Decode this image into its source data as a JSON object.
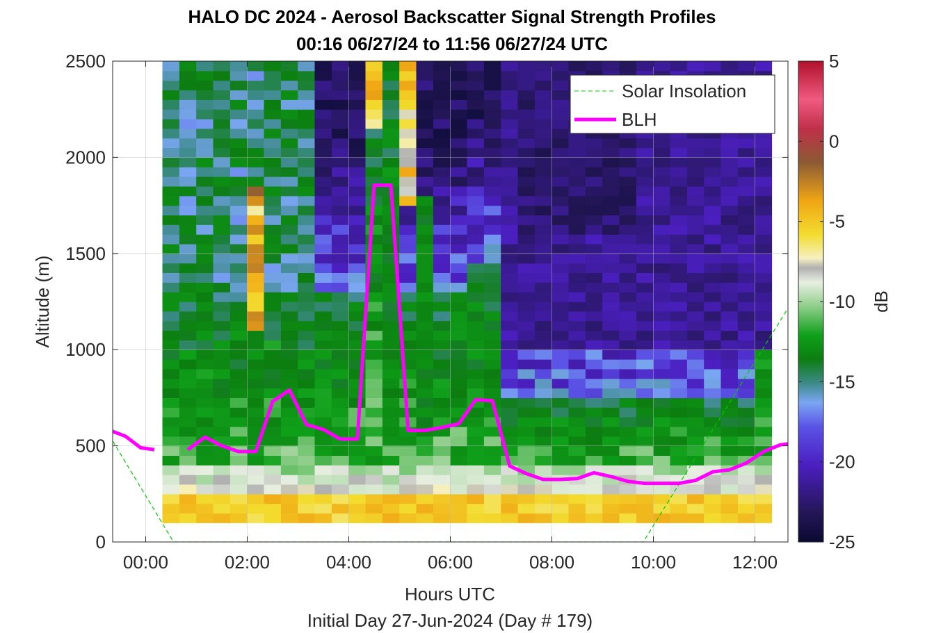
{
  "chart_data": {
    "type": "heatmap",
    "title": "HALO DC 2024 - Aerosol Backscatter Signal Strength Profiles",
    "subtitle": "00:16 06/27/24 to 11:56 06/27/24  UTC",
    "xlabel": "Hours UTC",
    "ylabel": "Altitude (m)",
    "footer": "Initial Day 27-Jun-2024 (Day # 179)",
    "xlim": [
      -0.65,
      12.65
    ],
    "ylim": [
      0,
      2500
    ],
    "x_ticks": [
      0,
      2,
      4,
      6,
      8,
      10,
      12
    ],
    "x_tick_labels": [
      "00:00",
      "02:00",
      "04:00",
      "06:00",
      "08:00",
      "10:00",
      "12:00"
    ],
    "y_ticks": [
      0,
      500,
      1000,
      1500,
      2000,
      2500
    ],
    "y_tick_labels": [
      "0",
      "500",
      "1000",
      "1500",
      "2000",
      "2500"
    ],
    "grid": true,
    "legend_position": "top-right",
    "colorbar": {
      "label": "dB",
      "range": [
        -25,
        5
      ],
      "ticks": [
        5,
        0,
        -5,
        -10,
        -15,
        -20,
        -25
      ],
      "tick_labels": [
        "5",
        "0",
        "-5",
        "-10",
        "-15",
        "-20",
        "-25"
      ]
    },
    "heatmap": {
      "time_start": 0.33,
      "time_step": 0.3333,
      "n_times": 36,
      "alt_start": 100,
      "alt_step": 50,
      "n_alts": 48,
      "units": "dB"
    },
    "series": [
      {
        "name": "BLH",
        "color": "#ff00ff",
        "x": [
          -0.65,
          -0.4,
          -0.2,
          -0.1,
          0.17,
          0.5,
          0.83,
          1.17,
          1.5,
          1.83,
          2.17,
          2.5,
          2.83,
          3.17,
          3.5,
          3.83,
          4.17,
          4.5,
          4.83,
          5.17,
          5.5,
          5.83,
          6.17,
          6.5,
          6.83,
          7.17,
          7.5,
          7.83,
          8.17,
          8.5,
          8.83,
          9.17,
          9.5,
          9.83,
          10.17,
          10.5,
          10.83,
          11.17,
          11.5,
          11.83,
          12.17,
          12.5,
          12.65
        ],
        "y": [
          575,
          550,
          510,
          490,
          480,
          null,
          480,
          545,
          500,
          470,
          470,
          730,
          790,
          610,
          585,
          535,
          535,
          1855,
          1855,
          580,
          580,
          595,
          615,
          740,
          735,
          395,
          355,
          325,
          325,
          330,
          360,
          340,
          315,
          305,
          305,
          305,
          320,
          365,
          375,
          410,
          470,
          505,
          510
        ]
      },
      {
        "name": "Solar Insolation",
        "color": "#00cc00",
        "x": [
          -0.65,
          0.55,
          9.8,
          12.65
        ],
        "y": [
          525,
          0,
          0,
          1215
        ]
      }
    ]
  }
}
